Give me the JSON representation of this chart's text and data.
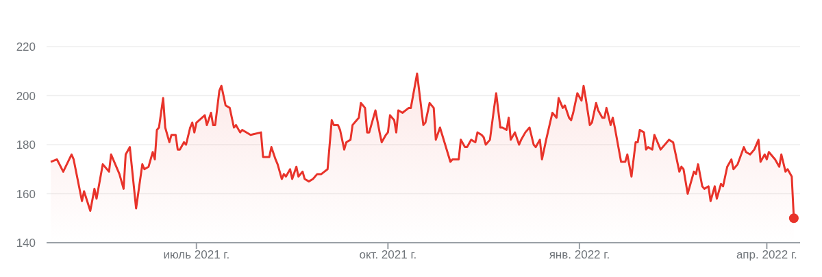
{
  "chart_data": {
    "type": "area",
    "xlim": [
      "2021-04-20",
      "2022-04-17"
    ],
    "xticks": [
      {
        "value": "2021-07-01",
        "label": "июль 2021 г."
      },
      {
        "value": "2021-10-01",
        "label": "окт. 2021 г."
      },
      {
        "value": "2022-01-01",
        "label": "янв. 2022 г."
      },
      {
        "value": "2022-04-01",
        "label": "апр. 2022 г."
      }
    ],
    "ylim": [
      140,
      220
    ],
    "yticks": [
      140,
      160,
      180,
      200,
      220
    ],
    "grid": "y",
    "legend": false,
    "series": [
      {
        "color": "#e8332a",
        "x": [
          "2021-04-22",
          "2021-04-25",
          "2021-04-28",
          "2021-05-02",
          "2021-05-03",
          "2021-05-07",
          "2021-05-08",
          "2021-05-11",
          "2021-05-13",
          "2021-05-14",
          "2021-05-17",
          "2021-05-20",
          "2021-05-21",
          "2021-05-25",
          "2021-05-27",
          "2021-05-28",
          "2021-05-30",
          "2021-06-02",
          "2021-06-05",
          "2021-06-06",
          "2021-06-08",
          "2021-06-10",
          "2021-06-11",
          "2021-06-12",
          "2021-06-13",
          "2021-06-15",
          "2021-06-16",
          "2021-06-18",
          "2021-06-19",
          "2021-06-21",
          "2021-06-22",
          "2021-06-23",
          "2021-06-25",
          "2021-06-26",
          "2021-06-28",
          "2021-06-29",
          "2021-06-30",
          "2021-07-01",
          "2021-07-05",
          "2021-07-06",
          "2021-07-08",
          "2021-07-09",
          "2021-07-10",
          "2021-07-12",
          "2021-07-13",
          "2021-07-15",
          "2021-07-17",
          "2021-07-19",
          "2021-07-20",
          "2021-07-22",
          "2021-07-23",
          "2021-07-27",
          "2021-08-01",
          "2021-08-02",
          "2021-08-05",
          "2021-08-06",
          "2021-08-08",
          "2021-08-09",
          "2021-08-11",
          "2021-08-12",
          "2021-08-13",
          "2021-08-15",
          "2021-08-16",
          "2021-08-18",
          "2021-08-19",
          "2021-08-21",
          "2021-08-22",
          "2021-08-24",
          "2021-08-26",
          "2021-08-28",
          "2021-08-30",
          "2021-09-02",
          "2021-09-04",
          "2021-09-05",
          "2021-09-07",
          "2021-09-08",
          "2021-09-10",
          "2021-09-11",
          "2021-09-13",
          "2021-09-14",
          "2021-09-15",
          "2021-09-17",
          "2021-09-18",
          "2021-09-20",
          "2021-09-21",
          "2021-09-22",
          "2021-09-25",
          "2021-09-27",
          "2021-09-28",
          "2021-09-30",
          "2021-10-01",
          "2021-10-02",
          "2021-10-04",
          "2021-10-05",
          "2021-10-06",
          "2021-10-08",
          "2021-10-11",
          "2021-10-12",
          "2021-10-15",
          "2021-10-18",
          "2021-10-19",
          "2021-10-21",
          "2021-10-23",
          "2021-10-24",
          "2021-10-26",
          "2021-10-31",
          "2021-11-01",
          "2021-11-04",
          "2021-11-05",
          "2021-11-07",
          "2021-11-08",
          "2021-11-10",
          "2021-11-12",
          "2021-11-13",
          "2021-11-15",
          "2021-11-16",
          "2021-11-17",
          "2021-11-19",
          "2021-11-21",
          "2021-11-22",
          "2021-11-24",
          "2021-11-25",
          "2021-11-27",
          "2021-11-28",
          "2021-11-29",
          "2021-12-01",
          "2021-12-03",
          "2021-12-04",
          "2021-12-06",
          "2021-12-08",
          "2021-12-10",
          "2021-12-11",
          "2021-12-13",
          "2021-12-14",
          "2021-12-16",
          "2021-12-19",
          "2021-12-21",
          "2021-12-22",
          "2021-12-24",
          "2021-12-25",
          "2021-12-27",
          "2021-12-28",
          "2021-12-29",
          "2021-12-31",
          "2022-01-02",
          "2022-01-03",
          "2022-01-04",
          "2022-01-06",
          "2022-01-07",
          "2022-01-09",
          "2022-01-10",
          "2022-01-12",
          "2022-01-13",
          "2022-01-14",
          "2022-01-16",
          "2022-01-17",
          "2022-01-18",
          "2022-01-21",
          "2022-01-23",
          "2022-01-24",
          "2022-01-26",
          "2022-01-28",
          "2022-01-29",
          "2022-01-30",
          "2022-02-01",
          "2022-02-02",
          "2022-02-03",
          "2022-02-05",
          "2022-02-06",
          "2022-02-09",
          "2022-02-12",
          "2022-02-13",
          "2022-02-15",
          "2022-02-18",
          "2022-02-19",
          "2022-02-20",
          "2022-02-22",
          "2022-02-25",
          "2022-02-26",
          "2022-02-27",
          "2022-03-01",
          "2022-03-02",
          "2022-03-04",
          "2022-03-05",
          "2022-03-07",
          "2022-03-08",
          "2022-03-10",
          "2022-03-11",
          "2022-03-13",
          "2022-03-15",
          "2022-03-16",
          "2022-03-18",
          "2022-03-21",
          "2022-03-22",
          "2022-03-24",
          "2022-03-26",
          "2022-03-28",
          "2022-03-29",
          "2022-03-31",
          "2022-04-01",
          "2022-04-02",
          "2022-04-05",
          "2022-04-07",
          "2022-04-08",
          "2022-04-10",
          "2022-04-11",
          "2022-04-13",
          "2022-04-14"
        ],
        "values": [
          173,
          174,
          169,
          176,
          174,
          157,
          161,
          153,
          162,
          158,
          172,
          169,
          176,
          168,
          162,
          176,
          179,
          154,
          172,
          170,
          171,
          177,
          174,
          186,
          187,
          199,
          187,
          181,
          184,
          184,
          178,
          178,
          181,
          180,
          187,
          189,
          185,
          189,
          192,
          188,
          193,
          188,
          188,
          202,
          204,
          196,
          195,
          187,
          188,
          185,
          186,
          184,
          185,
          175,
          175,
          179,
          174,
          172,
          166,
          168,
          167,
          170,
          166,
          171,
          167,
          169,
          166,
          165,
          166,
          168,
          168,
          170,
          190,
          188,
          188,
          186,
          178,
          181,
          182,
          188,
          189,
          191,
          197,
          195,
          185,
          185,
          194,
          185,
          181,
          184,
          185,
          192,
          190,
          185,
          194,
          193,
          195,
          195,
          209,
          188,
          189,
          197,
          195,
          182,
          187,
          173,
          174,
          174,
          182,
          179,
          179,
          182,
          181,
          185,
          184,
          183,
          180,
          182,
          195,
          201,
          187,
          187,
          186,
          191,
          182,
          185,
          180,
          182,
          185,
          187,
          180,
          179,
          182,
          174,
          182,
          193,
          191,
          199,
          195,
          196,
          191,
          190,
          193,
          201,
          198,
          204,
          199,
          188,
          189,
          197,
          194,
          191,
          191,
          195,
          188,
          191,
          187,
          173,
          173,
          176,
          167,
          181,
          181,
          186,
          185,
          178,
          179,
          178,
          184,
          178,
          181,
          182,
          181,
          169,
          171,
          170,
          160,
          169,
          168,
          172,
          163,
          162,
          163,
          157,
          163,
          158,
          164,
          163,
          171,
          174,
          170,
          172,
          179,
          177,
          176,
          178,
          182,
          173,
          176,
          174,
          177,
          174,
          171,
          176,
          169,
          170,
          167,
          150
        ]
      },
      {
        "type": "scatter",
        "color": "#e8332a",
        "x": [
          "2022-04-14"
        ],
        "values": [
          150
        ]
      }
    ]
  }
}
